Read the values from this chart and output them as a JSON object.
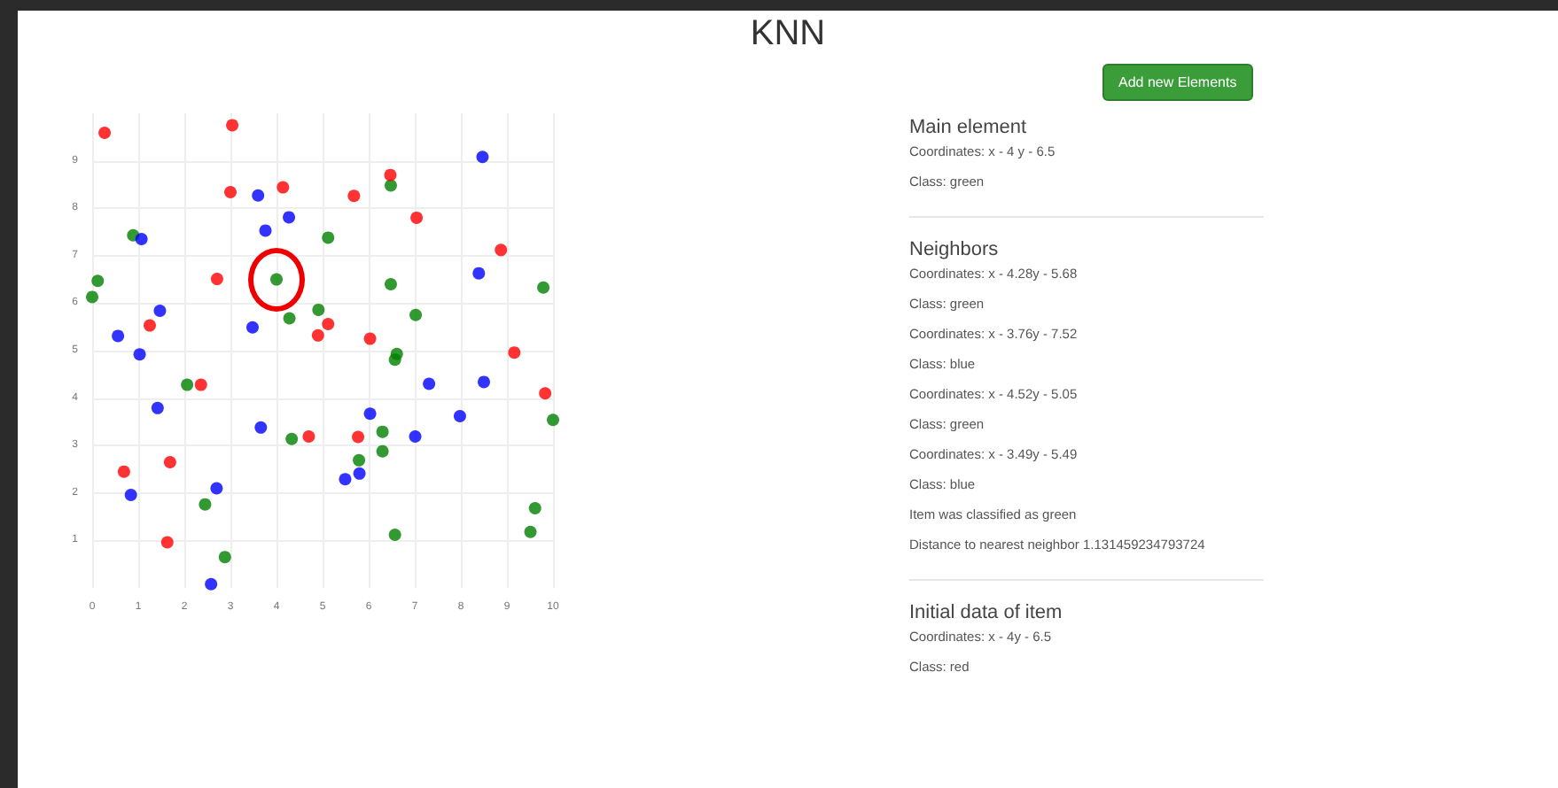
{
  "chart_data": {
    "type": "scatter",
    "title": "KNN",
    "xlim": [
      0,
      10
    ],
    "ylim": [
      0,
      10
    ],
    "xticks": [
      0,
      1,
      2,
      3,
      4,
      5,
      6,
      7,
      8,
      9,
      10
    ],
    "yticks": [
      1,
      2,
      3,
      4,
      5,
      6,
      7,
      8,
      9
    ],
    "grid": true,
    "marker": "circle",
    "series": [
      {
        "color": "#008000",
        "x": [
          4,
          6.48,
          0.89,
          5.12,
          0.12,
          0,
          6.48,
          9.79,
          4.91,
          4.28,
          7.02,
          6.61,
          6.57,
          2.06,
          10,
          4.33,
          6.3,
          6.3,
          5.79,
          2.45,
          9.61,
          9.51,
          6.57,
          2.88
        ],
        "values": [
          6.5,
          8.48,
          7.43,
          7.38,
          6.47,
          6.13,
          6.4,
          6.33,
          5.86,
          5.68,
          5.75,
          4.93,
          4.81,
          4.28,
          3.54,
          3.14,
          3.29,
          2.88,
          2.69,
          1.76,
          1.68,
          1.18,
          1.12,
          0.65
        ]
      },
      {
        "color": "#ff0000",
        "x": [
          0.27,
          3.04,
          3,
          4.14,
          5.68,
          6.47,
          7.04,
          8.87,
          2.71,
          1.25,
          5.12,
          4.9,
          6.03,
          9.16,
          2.36,
          9.83,
          4.7,
          5.77,
          0.69,
          1.69,
          1.63
        ],
        "values": [
          9.59,
          9.75,
          8.34,
          8.44,
          8.26,
          8.7,
          7.8,
          7.12,
          6.51,
          5.53,
          5.56,
          5.32,
          5.25,
          4.96,
          4.28,
          4.1,
          3.19,
          3.18,
          2.45,
          2.65,
          0.96
        ]
      },
      {
        "color": "#0000ff",
        "x": [
          8.47,
          3.6,
          4.27,
          3.76,
          1.07,
          8.39,
          1.47,
          3.48,
          0.56,
          1.03,
          7.31,
          8.5,
          1.42,
          6.03,
          7.98,
          3.66,
          7.01,
          5.49,
          5.8,
          2.7,
          0.84,
          2.58
        ],
        "values": [
          9.08,
          8.27,
          7.81,
          7.53,
          7.35,
          6.63,
          5.84,
          5.49,
          5.31,
          4.92,
          4.3,
          4.34,
          3.79,
          3.67,
          3.62,
          3.38,
          3.19,
          2.29,
          2.41,
          2.1,
          1.96,
          0.08
        ]
      }
    ],
    "annotations": [
      "Add new Elements",
      "Main element",
      "Coordinates: x - 4 y - 6.5",
      "Class: green",
      "Neighbors",
      "Coordinates: x - 4.28y - 5.68",
      "Class: green",
      "Coordinates: x - 3.76y - 7.52",
      "Class: blue",
      "Coordinates: x - 4.52y - 5.05",
      "Class: green",
      "Coordinates: x - 3.49y - 5.49",
      "Class: blue",
      "Item was classified as green",
      "Distance to nearest neighbor 1.131459234793724",
      "Initial data of item",
      "Coordinates: x - 4y - 6.5",
      "Class: red"
    ]
  }
}
